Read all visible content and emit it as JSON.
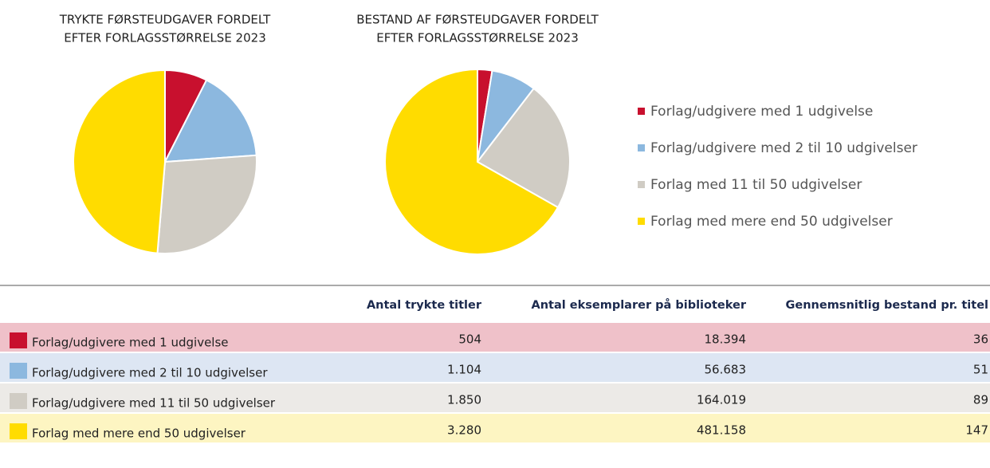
{
  "chart_data": [
    {
      "type": "pie",
      "title": [
        "TRYKTE FØRSTEUDGAVER FORDELT",
        "EFTER FORLAGSSTØRRELSE 2023"
      ],
      "values": [
        504,
        1104,
        1850,
        3280
      ],
      "colors": [
        "#c8102e",
        "#8cb8df",
        "#d0ccc4",
        "#ffdc00"
      ]
    },
    {
      "type": "pie",
      "title": [
        "BESTAND AF FØRSTEUDGAVER FORDELT",
        "EFTER FORLAGSSTØRRELSE 2023"
      ],
      "values": [
        18394,
        56683,
        164019,
        481158
      ],
      "colors": [
        "#c8102e",
        "#8cb8df",
        "#d0ccc4",
        "#ffdc00"
      ]
    }
  ],
  "legend": {
    "labels": [
      "Forlag/udgivere med 1 udgivelse",
      "Forlag/udgivere med 2 til 10 udgivelser",
      "Forlag med 11 til 50 udgivelser",
      "Forlag med mere end 50 udgivelser"
    ],
    "colors": [
      "#c8102e",
      "#8cb8df",
      "#d0ccc4",
      "#ffdc00"
    ]
  },
  "table": {
    "header": [
      "Antal trykte titler",
      "Antal eksemplarer på biblioteker",
      "Gennemsnitlig bestand pr. titel"
    ],
    "rows": [
      [
        "Forlag/udgivere med 1 udgivelse",
        "504",
        "18.394",
        "36"
      ],
      [
        "Forlag/udgivere med 2 til 10 udgivelser",
        "1.104",
        "56.683",
        "51"
      ],
      [
        "Forlag/udgivere med 11 til 50 udgivelser",
        "1.850",
        "164.019",
        "89"
      ],
      [
        "Forlag med mere end 50 udgivelser",
        "3.280",
        "481.158",
        "147"
      ]
    ],
    "row_colors": [
      "#efc1c9",
      "#dde6f3",
      "#eceae7",
      "#fdf5c2"
    ],
    "swatch_colors": [
      "#c8102e",
      "#8cb8df",
      "#d0ccc4",
      "#ffdc00"
    ]
  }
}
